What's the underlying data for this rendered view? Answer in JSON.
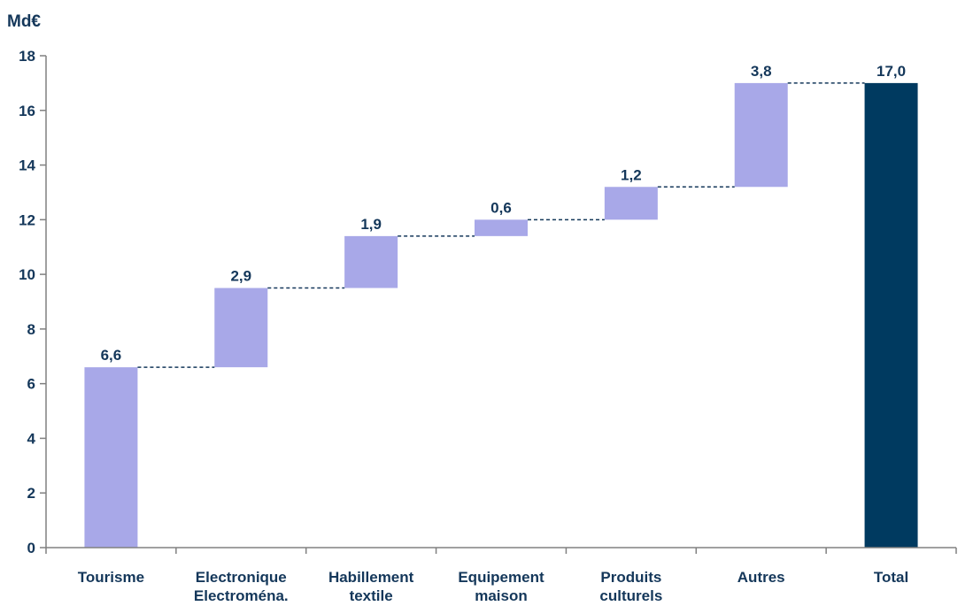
{
  "chart_data": {
    "type": "bar",
    "subtype": "waterfall",
    "ylabel": "Md€",
    "ylim": [
      0,
      18
    ],
    "yticks": [
      "0",
      "2",
      "4",
      "6",
      "8",
      "10",
      "12",
      "14",
      "16",
      "18"
    ],
    "grid": false,
    "categories": [
      [
        "Tourisme"
      ],
      [
        "Electronique",
        "Electroména."
      ],
      [
        "Habillement",
        "textile"
      ],
      [
        "Equipement",
        "maison"
      ],
      [
        "Produits",
        "culturels"
      ],
      [
        "Autres"
      ],
      [
        "Total"
      ]
    ],
    "bars": [
      {
        "label": "6,6",
        "base": 0,
        "value": 6.6,
        "kind": "increment"
      },
      {
        "label": "2,9",
        "base": 6.6,
        "value": 2.9,
        "kind": "increment"
      },
      {
        "label": "1,9",
        "base": 9.5,
        "value": 1.9,
        "kind": "increment"
      },
      {
        "label": "0,6",
        "base": 11.4,
        "value": 0.6,
        "kind": "increment"
      },
      {
        "label": "1,2",
        "base": 12.0,
        "value": 1.2,
        "kind": "increment"
      },
      {
        "label": "3,8",
        "base": 13.2,
        "value": 3.8,
        "kind": "increment"
      },
      {
        "label": "17,0",
        "base": 0,
        "value": 17.0,
        "kind": "total"
      }
    ],
    "colors": {
      "increment": "#a8a8e8",
      "total": "#003a60",
      "connector": "#14375a",
      "axis": "#808080",
      "text": "#14375a"
    }
  }
}
